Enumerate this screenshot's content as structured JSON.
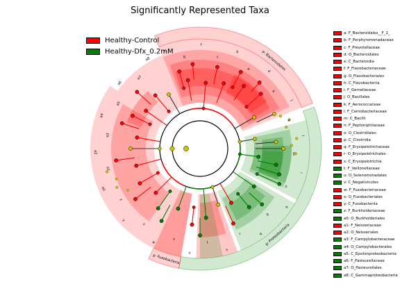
{
  "title": "Significantly Represented Taxa",
  "colors": {
    "Healthy-Control": "#ff0000",
    "Healthy-Dfx_0.2mM": "#008000",
    "nonsignificant": "#c8c800"
  },
  "groups": [
    {
      "name": "Healthy-Control",
      "color": "#ff0000"
    },
    {
      "name": "Healthy-Dfx_0.2mM",
      "color": "#008000"
    }
  ],
  "chart_data": {
    "type": "cladogram",
    "title": "Significantly Represented Taxa",
    "legend_position": "top-left",
    "clade_legend_position": "right",
    "phylum_labels": [
      "p: Bacteroidetes",
      "p: Proteobacteria",
      "p: Fusobacteria"
    ],
    "sector_letters": [
      "h",
      "g",
      "f",
      "c",
      "b",
      "e",
      "d",
      "a",
      "j",
      "k",
      "l",
      "m",
      "i",
      "n",
      "o",
      "p",
      "q",
      "r",
      "s",
      "t",
      "u",
      "v",
      "w",
      "x",
      "y",
      "z",
      "a0",
      "a1",
      "a2",
      "a3",
      "a4",
      "a5",
      "a6",
      "a7",
      "a8"
    ],
    "clades": [
      {
        "code": "a",
        "label": "a: F_Bacteroidales__F_2_",
        "group": "Healthy-Control"
      },
      {
        "code": "b",
        "label": "b: F_Porphyromonadaceae",
        "group": "Healthy-Control"
      },
      {
        "code": "c",
        "label": "c: F_Prevotellaceae",
        "group": "Healthy-Control"
      },
      {
        "code": "d",
        "label": "d: O_Bacteroidales",
        "group": "Healthy-Control"
      },
      {
        "code": "e",
        "label": "e: C_Bacteroidia",
        "group": "Healthy-Control"
      },
      {
        "code": "f",
        "label": "f: F_Flavobacteriaceae",
        "group": "Healthy-Control"
      },
      {
        "code": "g",
        "label": "g: O_Flavobacteriales",
        "group": "Healthy-Control"
      },
      {
        "code": "h",
        "label": "h: C_Flavobacteriia",
        "group": "Healthy-Control"
      },
      {
        "code": "i",
        "label": "i: F_Gemellaceae",
        "group": "Healthy-Control"
      },
      {
        "code": "j",
        "label": "j: O_Bacillales",
        "group": "Healthy-Control"
      },
      {
        "code": "k",
        "label": "k: F_Aerococcaceae",
        "group": "Healthy-Control"
      },
      {
        "code": "l",
        "label": "l: F_Carnobacteriaceae",
        "group": "Healthy-Control"
      },
      {
        "code": "m",
        "label": "m: C_Bacilli",
        "group": "Healthy-Control"
      },
      {
        "code": "n",
        "label": "n: F_Peptoniphilaceae",
        "group": "Healthy-Control"
      },
      {
        "code": "o",
        "label": "o: O_Clostridiales",
        "group": "Healthy-Control"
      },
      {
        "code": "p",
        "label": "p: C_Clostridia",
        "group": "Healthy-Control"
      },
      {
        "code": "q",
        "label": "q: F_Erysipelotrichaceae",
        "group": "Healthy-Control"
      },
      {
        "code": "r",
        "label": "r: O_Erysipelotrichales",
        "group": "Healthy-Control"
      },
      {
        "code": "s",
        "label": "s: C_Erysipelotrichia",
        "group": "Healthy-Control"
      },
      {
        "code": "t",
        "label": "t: F_Veillonellaceae",
        "group": "Healthy-Dfx_0.2mM"
      },
      {
        "code": "u",
        "label": "u: O_Selenomonadales",
        "group": "Healthy-Dfx_0.2mM"
      },
      {
        "code": "v",
        "label": "v: C_Negativicutes",
        "group": "Healthy-Dfx_0.2mM"
      },
      {
        "code": "w",
        "label": "w: F_Fusobacteriaceae",
        "group": "Healthy-Control"
      },
      {
        "code": "x",
        "label": "x: O_Fusobacteriales",
        "group": "Healthy-Control"
      },
      {
        "code": "y",
        "label": "y: C_Fusobacteriia",
        "group": "Healthy-Control"
      },
      {
        "code": "z",
        "label": "z: F_Burkholderiaceae",
        "group": "Healthy-Dfx_0.2mM"
      },
      {
        "code": "a0",
        "label": "a0: O_Burkholderiales",
        "group": "Healthy-Dfx_0.2mM"
      },
      {
        "code": "a1",
        "label": "a1: F_Neisseriaceae",
        "group": "Healthy-Control"
      },
      {
        "code": "a2",
        "label": "a2: O_Neisseriales",
        "group": "Healthy-Control"
      },
      {
        "code": "a3",
        "label": "a3: F_Campylobacteraceae",
        "group": "Healthy-Dfx_0.2mM"
      },
      {
        "code": "a4",
        "label": "a4: O_Campylobacterales",
        "group": "Healthy-Dfx_0.2mM"
      },
      {
        "code": "a5",
        "label": "a5: C_Epsilonproteobacteria",
        "group": "Healthy-Dfx_0.2mM"
      },
      {
        "code": "a6",
        "label": "a6: F_Pasteurellaceae",
        "group": "Healthy-Dfx_0.2mM"
      },
      {
        "code": "a7",
        "label": "a7: O_Pasteurellales",
        "group": "Healthy-Dfx_0.2mM"
      },
      {
        "code": "a8",
        "label": "a8: C_Gammaproteobacteria",
        "group": "Healthy-Dfx_0.2mM"
      }
    ]
  }
}
